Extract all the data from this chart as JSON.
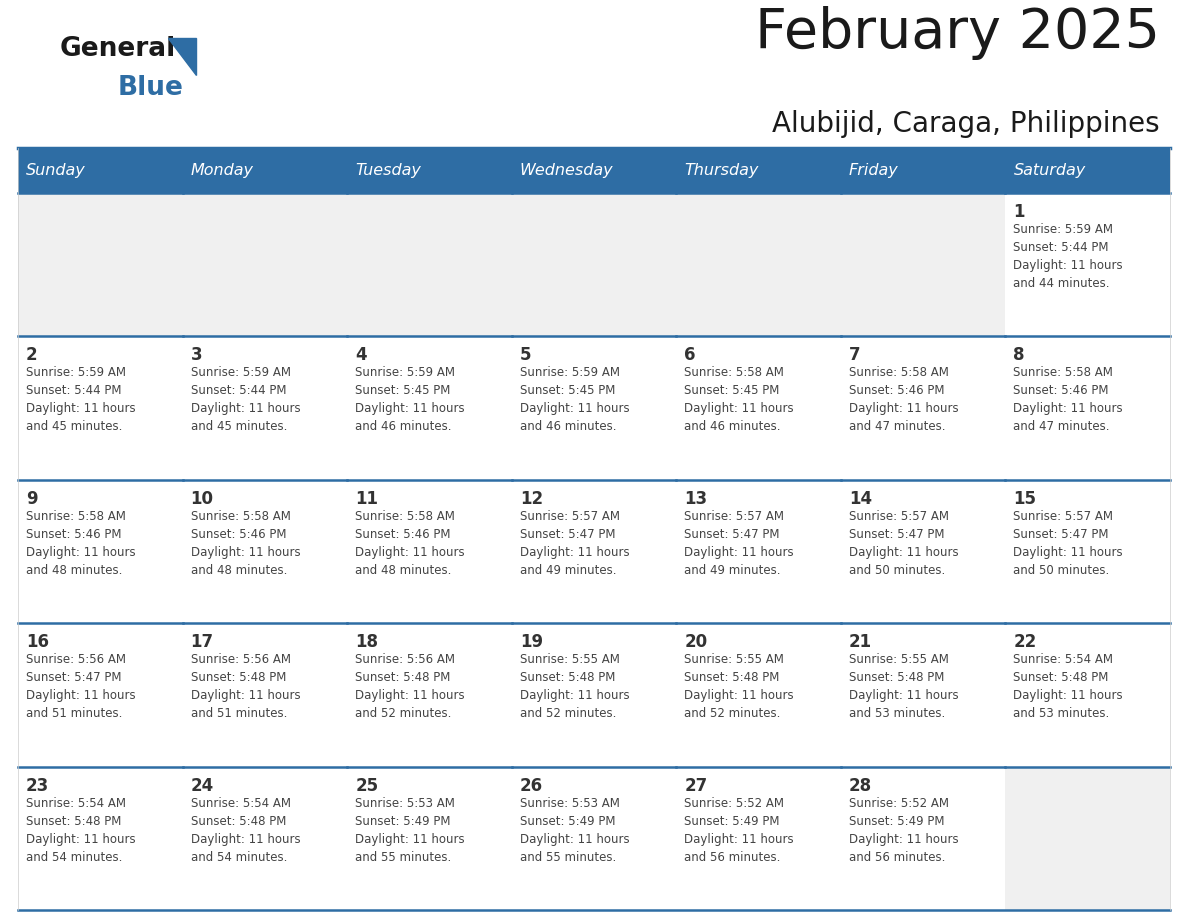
{
  "title": "February 2025",
  "subtitle": "Alubijid, Caraga, Philippines",
  "header_bg_color": "#2E6DA4",
  "header_text_color": "#FFFFFF",
  "cell_bg_color": "#FFFFFF",
  "empty_row_bg_color": "#F0F0F0",
  "day_number_color": "#333333",
  "text_color": "#444444",
  "border_color": "#2E6DA4",
  "line_color": "#AAAAAA",
  "days_of_week": [
    "Sunday",
    "Monday",
    "Tuesday",
    "Wednesday",
    "Thursday",
    "Friday",
    "Saturday"
  ],
  "weeks": [
    [
      {
        "day": null,
        "info": null
      },
      {
        "day": null,
        "info": null
      },
      {
        "day": null,
        "info": null
      },
      {
        "day": null,
        "info": null
      },
      {
        "day": null,
        "info": null
      },
      {
        "day": null,
        "info": null
      },
      {
        "day": 1,
        "info": "Sunrise: 5:59 AM\nSunset: 5:44 PM\nDaylight: 11 hours\nand 44 minutes."
      }
    ],
    [
      {
        "day": 2,
        "info": "Sunrise: 5:59 AM\nSunset: 5:44 PM\nDaylight: 11 hours\nand 45 minutes."
      },
      {
        "day": 3,
        "info": "Sunrise: 5:59 AM\nSunset: 5:44 PM\nDaylight: 11 hours\nand 45 minutes."
      },
      {
        "day": 4,
        "info": "Sunrise: 5:59 AM\nSunset: 5:45 PM\nDaylight: 11 hours\nand 46 minutes."
      },
      {
        "day": 5,
        "info": "Sunrise: 5:59 AM\nSunset: 5:45 PM\nDaylight: 11 hours\nand 46 minutes."
      },
      {
        "day": 6,
        "info": "Sunrise: 5:58 AM\nSunset: 5:45 PM\nDaylight: 11 hours\nand 46 minutes."
      },
      {
        "day": 7,
        "info": "Sunrise: 5:58 AM\nSunset: 5:46 PM\nDaylight: 11 hours\nand 47 minutes."
      },
      {
        "day": 8,
        "info": "Sunrise: 5:58 AM\nSunset: 5:46 PM\nDaylight: 11 hours\nand 47 minutes."
      }
    ],
    [
      {
        "day": 9,
        "info": "Sunrise: 5:58 AM\nSunset: 5:46 PM\nDaylight: 11 hours\nand 48 minutes."
      },
      {
        "day": 10,
        "info": "Sunrise: 5:58 AM\nSunset: 5:46 PM\nDaylight: 11 hours\nand 48 minutes."
      },
      {
        "day": 11,
        "info": "Sunrise: 5:58 AM\nSunset: 5:46 PM\nDaylight: 11 hours\nand 48 minutes."
      },
      {
        "day": 12,
        "info": "Sunrise: 5:57 AM\nSunset: 5:47 PM\nDaylight: 11 hours\nand 49 minutes."
      },
      {
        "day": 13,
        "info": "Sunrise: 5:57 AM\nSunset: 5:47 PM\nDaylight: 11 hours\nand 49 minutes."
      },
      {
        "day": 14,
        "info": "Sunrise: 5:57 AM\nSunset: 5:47 PM\nDaylight: 11 hours\nand 50 minutes."
      },
      {
        "day": 15,
        "info": "Sunrise: 5:57 AM\nSunset: 5:47 PM\nDaylight: 11 hours\nand 50 minutes."
      }
    ],
    [
      {
        "day": 16,
        "info": "Sunrise: 5:56 AM\nSunset: 5:47 PM\nDaylight: 11 hours\nand 51 minutes."
      },
      {
        "day": 17,
        "info": "Sunrise: 5:56 AM\nSunset: 5:48 PM\nDaylight: 11 hours\nand 51 minutes."
      },
      {
        "day": 18,
        "info": "Sunrise: 5:56 AM\nSunset: 5:48 PM\nDaylight: 11 hours\nand 52 minutes."
      },
      {
        "day": 19,
        "info": "Sunrise: 5:55 AM\nSunset: 5:48 PM\nDaylight: 11 hours\nand 52 minutes."
      },
      {
        "day": 20,
        "info": "Sunrise: 5:55 AM\nSunset: 5:48 PM\nDaylight: 11 hours\nand 52 minutes."
      },
      {
        "day": 21,
        "info": "Sunrise: 5:55 AM\nSunset: 5:48 PM\nDaylight: 11 hours\nand 53 minutes."
      },
      {
        "day": 22,
        "info": "Sunrise: 5:54 AM\nSunset: 5:48 PM\nDaylight: 11 hours\nand 53 minutes."
      }
    ],
    [
      {
        "day": 23,
        "info": "Sunrise: 5:54 AM\nSunset: 5:48 PM\nDaylight: 11 hours\nand 54 minutes."
      },
      {
        "day": 24,
        "info": "Sunrise: 5:54 AM\nSunset: 5:48 PM\nDaylight: 11 hours\nand 54 minutes."
      },
      {
        "day": 25,
        "info": "Sunrise: 5:53 AM\nSunset: 5:49 PM\nDaylight: 11 hours\nand 55 minutes."
      },
      {
        "day": 26,
        "info": "Sunrise: 5:53 AM\nSunset: 5:49 PM\nDaylight: 11 hours\nand 55 minutes."
      },
      {
        "day": 27,
        "info": "Sunrise: 5:52 AM\nSunset: 5:49 PM\nDaylight: 11 hours\nand 56 minutes."
      },
      {
        "day": 28,
        "info": "Sunrise: 5:52 AM\nSunset: 5:49 PM\nDaylight: 11 hours\nand 56 minutes."
      },
      {
        "day": null,
        "info": null
      }
    ]
  ]
}
